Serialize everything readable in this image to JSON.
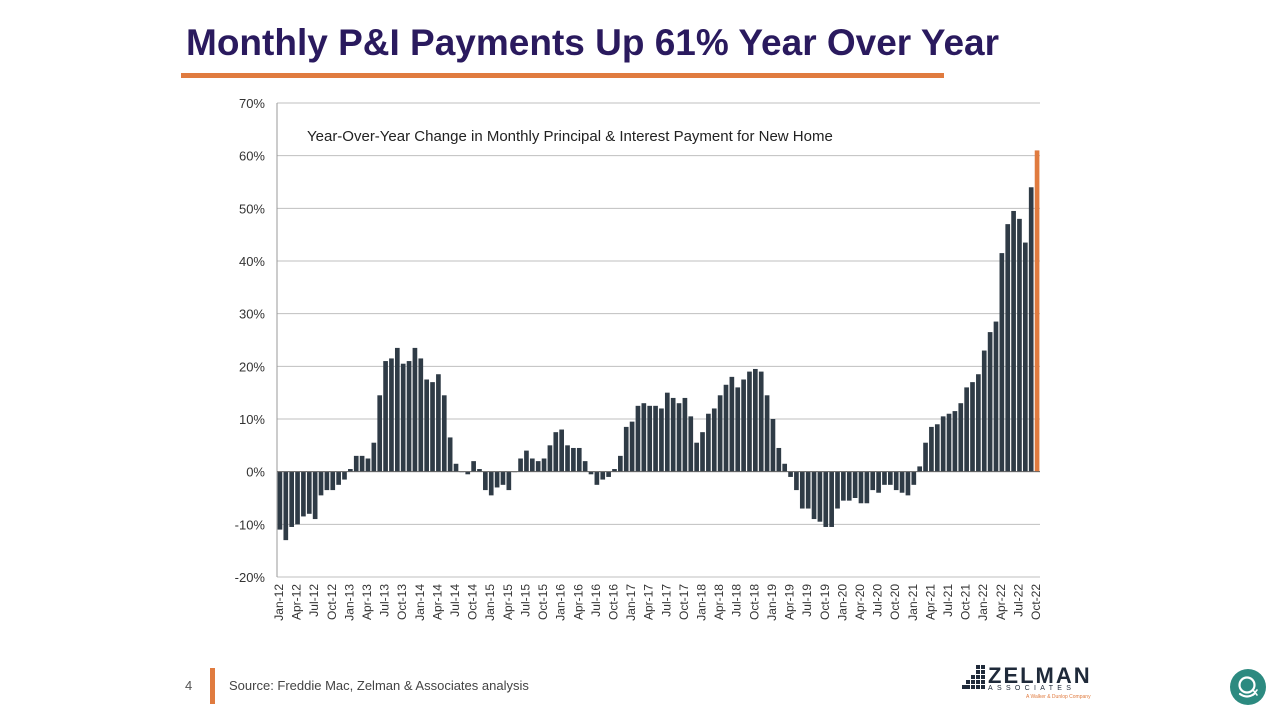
{
  "slide": {
    "title": "Monthly P&I Payments Up 61% Year Over Year",
    "number": "4",
    "source": "Source: Freddie Mac, Zelman & Associates analysis"
  },
  "logo": {
    "name": "ZELMAN",
    "sub": "ASSOCIATES",
    "tagline": "A Walker & Dunlop Company"
  },
  "colors": {
    "bar": "#2f3b46",
    "highlight": "#e07b3f",
    "title": "#2a1a5e",
    "grid": "#bfbfbf",
    "button": "#2c8a80"
  },
  "chart_data": {
    "type": "bar",
    "title": "Year-Over-Year Change in Monthly Principal & Interest Payment for New Home",
    "xlabel": "",
    "ylabel": "",
    "ylim": [
      -20,
      70
    ],
    "yticks": [
      -20,
      -10,
      0,
      10,
      20,
      30,
      40,
      50,
      60,
      70
    ],
    "ytick_labels": [
      "-20%",
      "-10%",
      "0%",
      "10%",
      "20%",
      "30%",
      "40%",
      "50%",
      "60%",
      "70%"
    ],
    "grid": true,
    "highlight_last": true,
    "x_tick_labels": [
      "Jan-12",
      "Apr-12",
      "Jul-12",
      "Oct-12",
      "Jan-13",
      "Apr-13",
      "Jul-13",
      "Oct-13",
      "Jan-14",
      "Apr-14",
      "Jul-14",
      "Oct-14",
      "Jan-15",
      "Apr-15",
      "Jul-15",
      "Oct-15",
      "Jan-16",
      "Apr-16",
      "Jul-16",
      "Oct-16",
      "Jan-17",
      "Apr-17",
      "Jul-17",
      "Oct-17",
      "Jan-18",
      "Apr-18",
      "Jul-18",
      "Oct-18",
      "Jan-19",
      "Apr-19",
      "Jul-19",
      "Oct-19",
      "Jan-20",
      "Apr-20",
      "Jul-20",
      "Oct-20",
      "Jan-21",
      "Apr-21",
      "Jul-21",
      "Oct-21",
      "Jan-22",
      "Apr-22",
      "Jul-22",
      "Oct-22"
    ],
    "values": [
      -11,
      -13,
      -10.5,
      -10,
      -8.5,
      -8,
      -9,
      -4.5,
      -3.5,
      -3.5,
      -2.5,
      -1.5,
      0.5,
      3,
      3,
      2.5,
      5.5,
      14.5,
      21,
      21.5,
      23.5,
      20.5,
      21,
      23.5,
      21.5,
      17.5,
      17,
      18.5,
      14.5,
      6.5,
      1.5,
      0,
      -0.5,
      2,
      0.5,
      -3.5,
      -4.5,
      -3,
      -2.5,
      -3.5,
      0,
      2.5,
      4,
      2.5,
      2,
      2.5,
      5,
      7.5,
      8,
      5,
      4.5,
      4.5,
      2,
      -0.5,
      -2.5,
      -1.5,
      -1,
      0.5,
      3,
      8.5,
      9.5,
      12.5,
      13,
      12.5,
      12.5,
      12,
      15,
      14,
      13,
      14,
      10.5,
      5.5,
      7.5,
      11,
      12,
      14.5,
      16.5,
      18,
      16,
      17.5,
      19,
      19.5,
      19,
      14.5,
      10,
      4.5,
      1.5,
      -1,
      -3.5,
      -7,
      -7,
      -9,
      -9.5,
      -10.5,
      -10.5,
      -7,
      -5.5,
      -5.5,
      -5,
      -6,
      -6,
      -3.5,
      -4,
      -2.5,
      -2.5,
      -3.5,
      -4,
      -4.5,
      -2.5,
      1,
      5.5,
      8.5,
      9,
      10.5,
      11,
      11.5,
      13,
      16,
      17,
      18.5,
      23,
      26.5,
      28.5,
      41.5,
      47,
      49.5,
      48,
      43.5,
      54,
      61
    ]
  }
}
